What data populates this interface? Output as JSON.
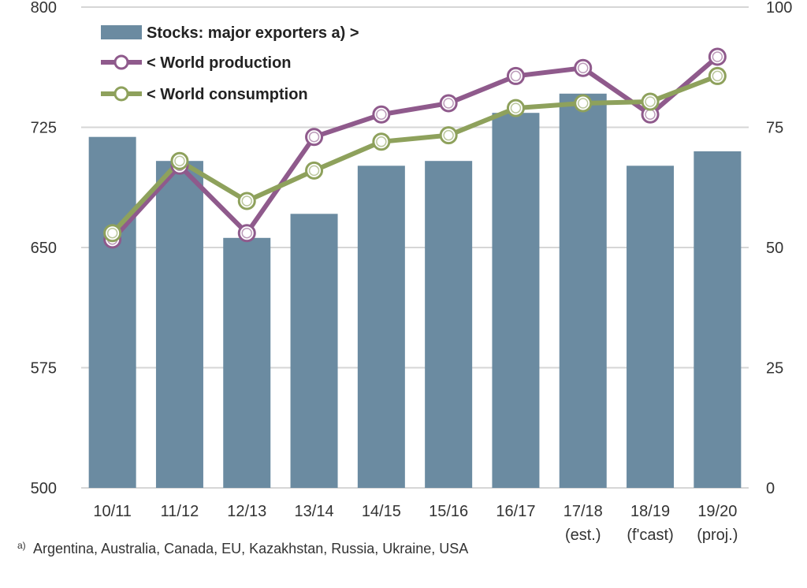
{
  "chart_data": {
    "type": "bar+line",
    "categories": [
      "10/11",
      "11/12",
      "12/13",
      "13/14",
      "14/15",
      "15/16",
      "16/17",
      "17/18",
      "18/19",
      "19/20"
    ],
    "category_sublabels": [
      "",
      "",
      "",
      "",
      "",
      "",
      "",
      "(est.)",
      "(f'cast)",
      "(proj.)"
    ],
    "left_axis": {
      "ylim": [
        500,
        800
      ],
      "ticks": [
        500,
        575,
        650,
        725,
        800
      ]
    },
    "right_axis": {
      "ylim": [
        0,
        100
      ],
      "ticks": [
        0,
        25,
        50,
        75,
        100
      ]
    },
    "grid": true,
    "legend_placement": "top-left",
    "series": [
      {
        "name": "Stocks: major exporters a) >",
        "type": "bar",
        "axis": "right",
        "color": "#6b8ba1",
        "values": [
          73,
          68,
          52,
          57,
          67,
          68,
          78,
          82,
          67,
          70
        ]
      },
      {
        "name": "< World production",
        "type": "line",
        "axis": "left",
        "color": "#8f5a8c",
        "values": [
          655,
          701,
          659,
          719,
          733,
          740,
          757,
          762,
          733,
          769
        ]
      },
      {
        "name": "< World consumption",
        "type": "line",
        "axis": "left",
        "color": "#8ea15c",
        "values": [
          659,
          704,
          679,
          698,
          716,
          720,
          737,
          740,
          741,
          757
        ]
      }
    ],
    "footnote": "Argentina, Australia, Canada, EU, Kazakhstan, Russia, Ukraine, USA",
    "footnote_marker": "a)"
  }
}
